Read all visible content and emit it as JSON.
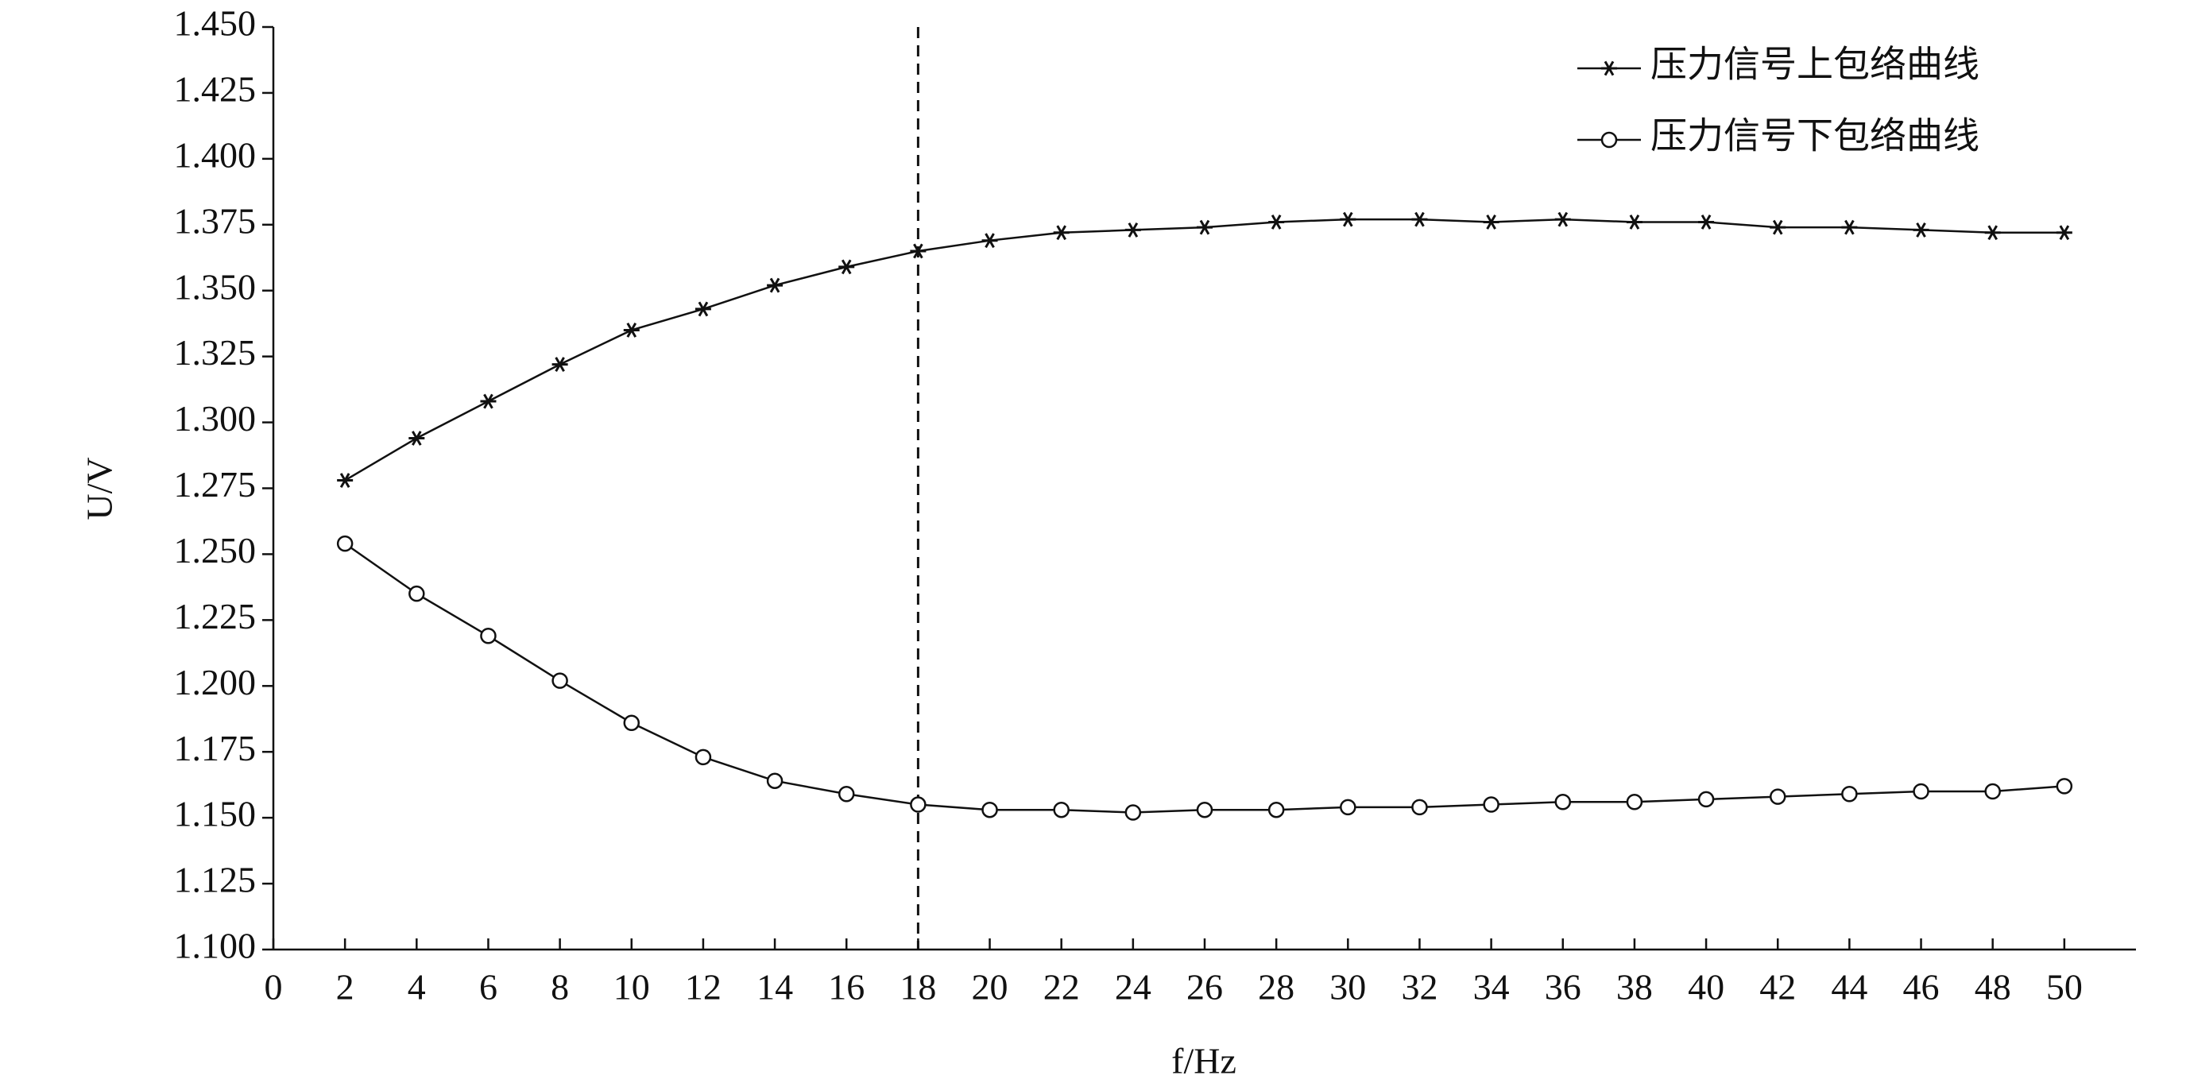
{
  "chart_data": {
    "type": "line",
    "x_label": "f/Hz",
    "y_label": "U/V",
    "x": [
      2,
      4,
      6,
      8,
      10,
      12,
      14,
      16,
      18,
      20,
      22,
      24,
      26,
      28,
      30,
      32,
      34,
      36,
      38,
      40,
      42,
      44,
      46,
      48,
      50
    ],
    "series": [
      {
        "name": "压力信号上包络曲线",
        "color": "#111111",
        "marker": "asterisk",
        "values": [
          1.278,
          1.294,
          1.308,
          1.322,
          1.335,
          1.343,
          1.352,
          1.359,
          1.365,
          1.369,
          1.372,
          1.373,
          1.374,
          1.376,
          1.377,
          1.377,
          1.376,
          1.377,
          1.376,
          1.376,
          1.374,
          1.374,
          1.373,
          1.372,
          1.372
        ]
      },
      {
        "name": "压力信号下包络曲线",
        "color": "#111111",
        "marker": "circle",
        "values": [
          1.254,
          1.235,
          1.219,
          1.202,
          1.186,
          1.173,
          1.164,
          1.159,
          1.155,
          1.153,
          1.153,
          1.152,
          1.153,
          1.153,
          1.154,
          1.154,
          1.155,
          1.156,
          1.156,
          1.157,
          1.158,
          1.159,
          1.16,
          1.16,
          1.162
        ]
      }
    ],
    "xlim": [
      0,
      52
    ],
    "xticks": [
      0,
      2,
      4,
      6,
      8,
      10,
      12,
      14,
      16,
      18,
      20,
      22,
      24,
      26,
      28,
      30,
      32,
      34,
      36,
      38,
      40,
      42,
      44,
      46,
      48,
      50
    ],
    "ylim": [
      1.1,
      1.45
    ],
    "yticks": [
      {
        "value": 1.1,
        "label": "1.100"
      },
      {
        "value": 1.125,
        "label": "1.125"
      },
      {
        "value": 1.15,
        "label": "1.150"
      },
      {
        "value": 1.175,
        "label": "1.175"
      },
      {
        "value": 1.2,
        "label": "1.200"
      },
      {
        "value": 1.225,
        "label": "1.225"
      },
      {
        "value": 1.25,
        "label": "1.250"
      },
      {
        "value": 1.275,
        "label": "1.275"
      },
      {
        "value": 1.3,
        "label": "1.300"
      },
      {
        "value": 1.325,
        "label": "1.325"
      },
      {
        "value": 1.35,
        "label": "1.350"
      },
      {
        "value": 1.375,
        "label": "1.375"
      },
      {
        "value": 1.4,
        "label": "1.400"
      },
      {
        "value": 1.425,
        "label": "1.425"
      },
      {
        "value": 1.45,
        "label": "1.450"
      }
    ],
    "vline_x": 18,
    "grid": false,
    "legend": "top-right"
  }
}
